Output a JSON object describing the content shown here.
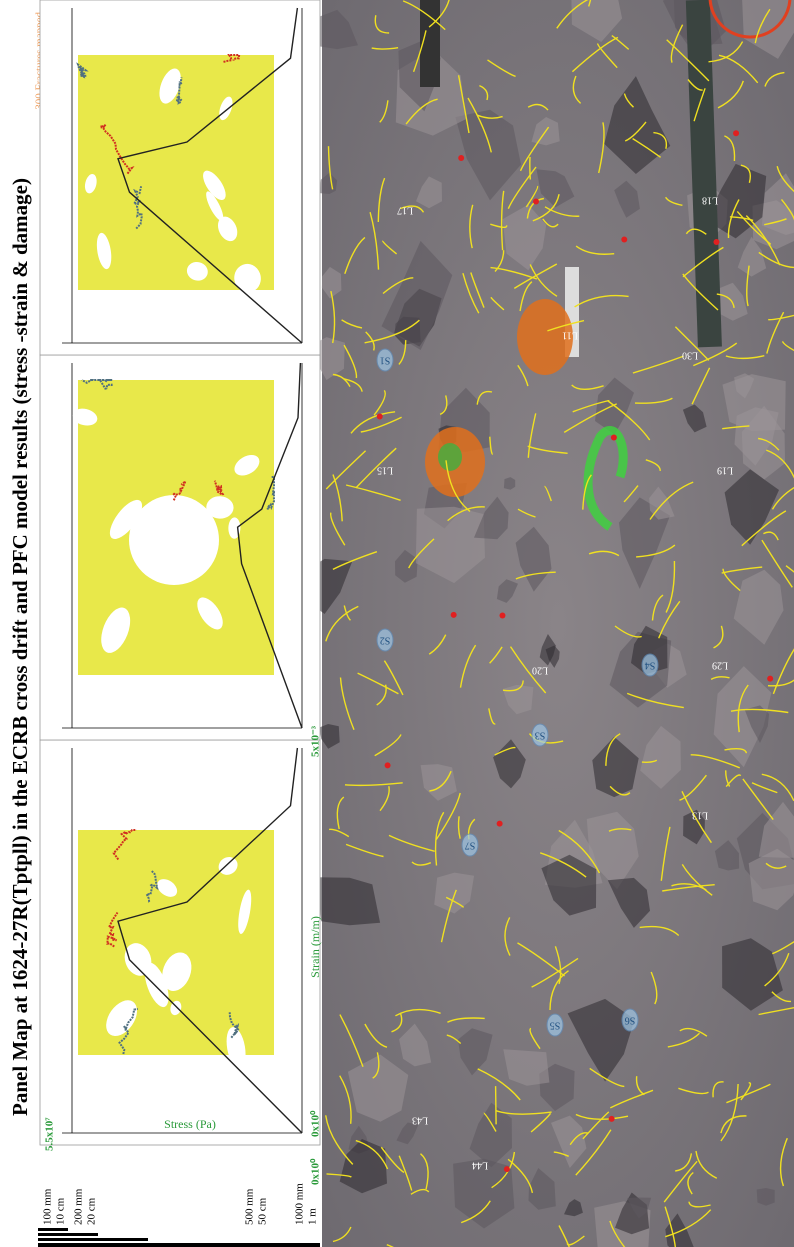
{
  "title": "Panel Map at 1624-27R(Tptpll) in the ECRB cross drift and PFC model results (stress -strain & damage)",
  "note": "300 Fractures mapped",
  "scale_bar": [
    "100 mm",
    "10 cm",
    "200 mm",
    "20 cm",
    "500 mm",
    "50 cm",
    "1000 mm",
    "1 m"
  ],
  "model_axes": {
    "y_label": "Stress (Pa)",
    "x_label": "Strain (m/m)",
    "y_top": "5.5x10⁷",
    "y_bottom": "0x10⁰",
    "x_left": "0x10⁰",
    "x_right": "5x10⁻³"
  },
  "photo_labels": [
    "L44",
    "L43",
    "L13",
    "L15",
    "L19",
    "L20",
    "L29",
    "L30",
    "L17",
    "L18",
    "L11",
    "S1",
    "S2",
    "S3",
    "S4",
    "S5",
    "S6",
    "S7"
  ]
}
